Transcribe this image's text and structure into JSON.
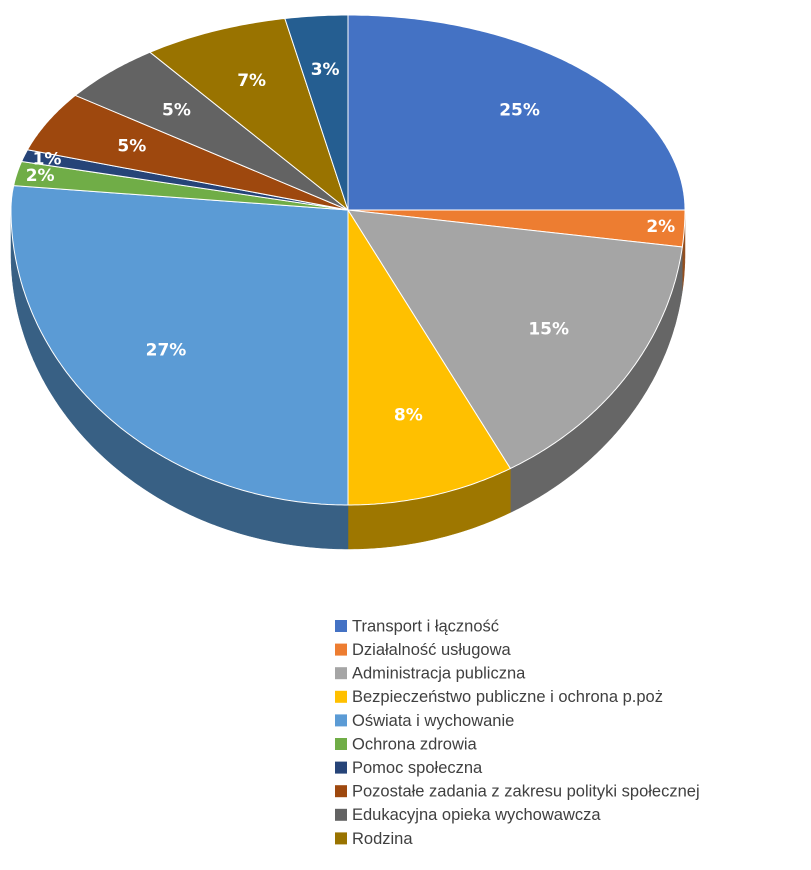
{
  "chart_data": {
    "type": "pie",
    "categories": [
      "Transport i łączność",
      "Działalność usługowa",
      "Administracja publiczna",
      "Bezpieczeństwo publiczne i ochrona p.poż",
      "Oświata i wychowanie",
      "Ochrona zdrowia",
      "Pomoc społeczna",
      "Pozostałe zadania z zakresu polityki społecznej",
      "Edukacyjna opieka wychowawcza",
      "Rodzina",
      null
    ],
    "values": [
      25,
      2,
      15,
      8,
      27,
      2,
      1,
      5,
      5,
      7,
      3
    ],
    "value_labels": [
      "25%",
      "2%",
      "15%",
      "8%",
      "27%",
      "2%",
      "1%",
      "5%",
      "5%",
      "7%",
      "3%"
    ],
    "colors": [
      "#4472c4",
      "#ed7d31",
      "#a5a5a5",
      "#ffc000",
      "#5b9bd5",
      "#70ad47",
      "#264478",
      "#9e480e",
      "#636363",
      "#997300",
      "#255e91"
    ],
    "legend": "bottom"
  }
}
